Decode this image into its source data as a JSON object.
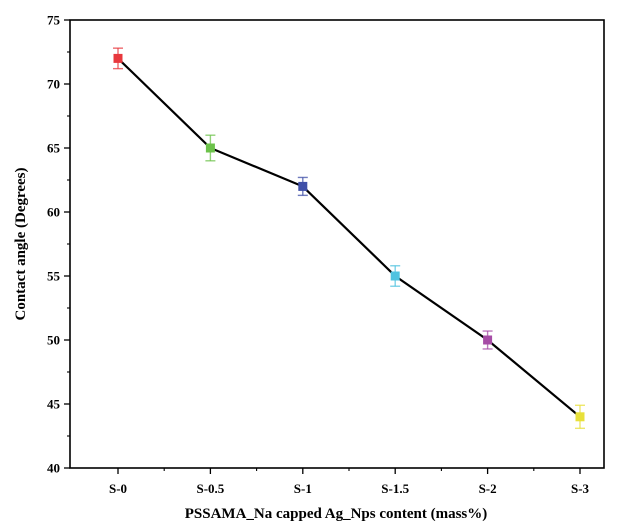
{
  "chart_data": {
    "type": "line",
    "title": "",
    "xlabel": "PSSAMA_Na capped Ag_Nps content (mass%)",
    "ylabel": "Contact angle (Degrees)",
    "categories": [
      "S-0",
      "S-0.5",
      "S-1",
      "S-1.5",
      "S-2",
      "S-3"
    ],
    "series": [
      {
        "values": [
          72,
          65,
          62,
          55,
          50,
          44
        ],
        "errors": [
          0.8,
          1.0,
          0.7,
          0.8,
          0.7,
          0.9
        ],
        "marker_colors": [
          "#e8383d",
          "#6cc24a",
          "#3f4fa8",
          "#4fc3e0",
          "#a64ca6",
          "#e8e03a"
        ],
        "line_color": "#000000"
      }
    ],
    "ylim": [
      40,
      75
    ],
    "yticks": [
      40,
      45,
      50,
      55,
      60,
      65,
      70,
      75
    ],
    "grid": false,
    "legend": "none"
  }
}
